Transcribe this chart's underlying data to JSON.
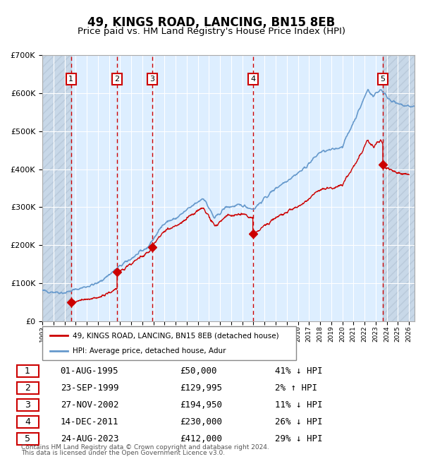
{
  "title": "49, KINGS ROAD, LANCING, BN15 8EB",
  "subtitle": "Price paid vs. HM Land Registry's House Price Index (HPI)",
  "legend_line1": "49, KINGS ROAD, LANCING, BN15 8EB (detached house)",
  "legend_line2": "HPI: Average price, detached house, Adur",
  "footer_line1": "Contains HM Land Registry data © Crown copyright and database right 2024.",
  "footer_line2": "This data is licensed under the Open Government Licence v3.0.",
  "ylim": [
    0,
    700000
  ],
  "yticks": [
    0,
    100000,
    200000,
    300000,
    400000,
    500000,
    600000,
    700000
  ],
  "ytick_labels": [
    "£0",
    "£100K",
    "£200K",
    "£300K",
    "£400K",
    "£500K",
    "£600K",
    "£700K"
  ],
  "xlim_start": 1993.0,
  "xlim_end": 2026.5,
  "hpi_color": "#6699cc",
  "price_color": "#cc0000",
  "sale_marker_color": "#cc0000",
  "dashed_line_color": "#cc0000",
  "bg_color": "#ddeeff",
  "hatch_color": "#bbccdd",
  "grid_color": "#ffffff",
  "sales": [
    {
      "num": 1,
      "date": "01-AUG-1995",
      "price": 50000,
      "pct": "41%",
      "dir": "↓",
      "year": 1995.583
    },
    {
      "num": 2,
      "date": "23-SEP-1999",
      "price": 129995,
      "pct": "2%",
      "dir": "↑",
      "year": 1999.728
    },
    {
      "num": 3,
      "date": "27-NOV-2002",
      "price": 194950,
      "pct": "11%",
      "dir": "↓",
      "year": 2002.9
    },
    {
      "num": 4,
      "date": "14-DEC-2011",
      "price": 230000,
      "pct": "26%",
      "dir": "↓",
      "year": 2011.95
    },
    {
      "num": 5,
      "date": "24-AUG-2023",
      "price": 412000,
      "pct": "29%",
      "dir": "↓",
      "year": 2023.645
    }
  ],
  "table_rows": [
    {
      "num": 1,
      "date": "01-AUG-1995",
      "price": "£50,000",
      "rel": "41% ↓ HPI"
    },
    {
      "num": 2,
      "date": "23-SEP-1999",
      "price": "£129,995",
      "rel": "2% ↑ HPI"
    },
    {
      "num": 3,
      "date": "27-NOV-2002",
      "price": "£194,950",
      "rel": "11% ↓ HPI"
    },
    {
      "num": 4,
      "date": "14-DEC-2011",
      "price": "£230,000",
      "rel": "26% ↓ HPI"
    },
    {
      "num": 5,
      "date": "24-AUG-2023",
      "price": "£412,000",
      "rel": "29% ↓ HPI"
    }
  ]
}
